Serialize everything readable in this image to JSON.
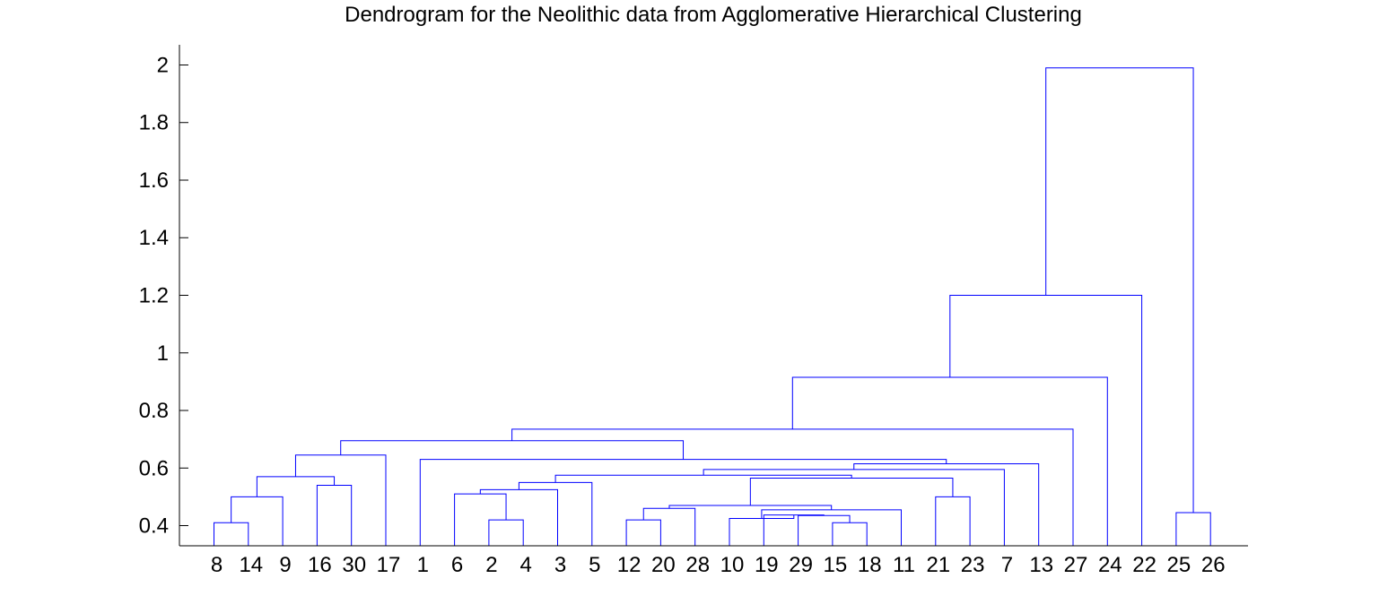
{
  "chart_data": {
    "type": "dendrogram",
    "title": "Dendrogram for the Neolithic data from Agglomerative Hierarchical Clustering",
    "xlabel": "",
    "ylabel": "",
    "ylim": [
      0.33,
      2.07
    ],
    "yticks": [
      0.4,
      0.6,
      0.8,
      1,
      1.2,
      1.4,
      1.6,
      1.8,
      2
    ],
    "ytick_labels": [
      "0.4",
      "0.6",
      "0.8",
      "1",
      "1.2",
      "1.4",
      "1.6",
      "1.8",
      "2"
    ],
    "leaf_order": [
      "8",
      "14",
      "9",
      "16",
      "30",
      "17",
      "1",
      "6",
      "2",
      "4",
      "3",
      "5",
      "12",
      "20",
      "28",
      "10",
      "19",
      "29",
      "15",
      "18",
      "11",
      "21",
      "23",
      "7",
      "13",
      "27",
      "24",
      "22",
      "25",
      "26"
    ],
    "line_color": "#0000ff",
    "grid": false,
    "links": [
      {
        "id": "A1",
        "left": 0,
        "right": 1,
        "height": 0.41
      },
      {
        "id": "A2",
        "left": "A1",
        "right": 2,
        "height": 0.5
      },
      {
        "id": "A3",
        "left": 3,
        "right": 4,
        "height": 0.54
      },
      {
        "id": "A4",
        "left": "A2",
        "right": "A3",
        "height": 0.57
      },
      {
        "id": "A5",
        "left": "A4",
        "right": 5,
        "height": 0.645
      },
      {
        "id": "B1",
        "left": 8,
        "right": 9,
        "height": 0.42
      },
      {
        "id": "B2",
        "left": 7,
        "right": "B1",
        "height": 0.51
      },
      {
        "id": "B3",
        "left": "B2",
        "right": 10,
        "height": 0.525
      },
      {
        "id": "B4",
        "left": "B3",
        "right": 11,
        "height": 0.55
      },
      {
        "id": "C1",
        "left": 12,
        "right": 13,
        "height": 0.42
      },
      {
        "id": "C2",
        "left": "C1",
        "right": 14,
        "height": 0.46
      },
      {
        "id": "D1",
        "left": 18,
        "right": 19,
        "height": 0.41
      },
      {
        "id": "D2",
        "left": 17,
        "right": "D1",
        "height": 0.435
      },
      {
        "id": "D3",
        "left": 16,
        "right": "D2",
        "height": 0.437
      },
      {
        "id": "D4",
        "left": 15,
        "right": "D3",
        "height": 0.425
      },
      {
        "id": "D5",
        "left": "D4",
        "right": 20,
        "height": 0.455
      },
      {
        "id": "D6",
        "left": "C2",
        "right": "D5",
        "height": 0.47
      },
      {
        "id": "E1",
        "left": 21,
        "right": 22,
        "height": 0.5
      },
      {
        "id": "E2",
        "left": "D6",
        "right": "E1",
        "height": 0.565
      },
      {
        "id": "E3",
        "left": "B4",
        "right": "E2",
        "height": 0.575
      },
      {
        "id": "E4",
        "left": "E3",
        "right": 23,
        "height": 0.595
      },
      {
        "id": "E5",
        "left": "E4",
        "right": 24,
        "height": 0.615
      },
      {
        "id": "E6",
        "left": 6,
        "right": "E5",
        "height": 0.63
      },
      {
        "id": "F1",
        "left": "A5",
        "right": "E6",
        "height": 0.695
      },
      {
        "id": "F2",
        "left": "F1",
        "right": 25,
        "height": 0.735
      },
      {
        "id": "F3",
        "left": "F2",
        "right": 26,
        "height": 0.915
      },
      {
        "id": "F4",
        "left": "F3",
        "right": 27,
        "height": 1.2
      },
      {
        "id": "G1",
        "left": 28,
        "right": 29,
        "height": 0.445
      },
      {
        "id": "R",
        "left": "F4",
        "right": "G1",
        "height": 1.99
      }
    ]
  }
}
